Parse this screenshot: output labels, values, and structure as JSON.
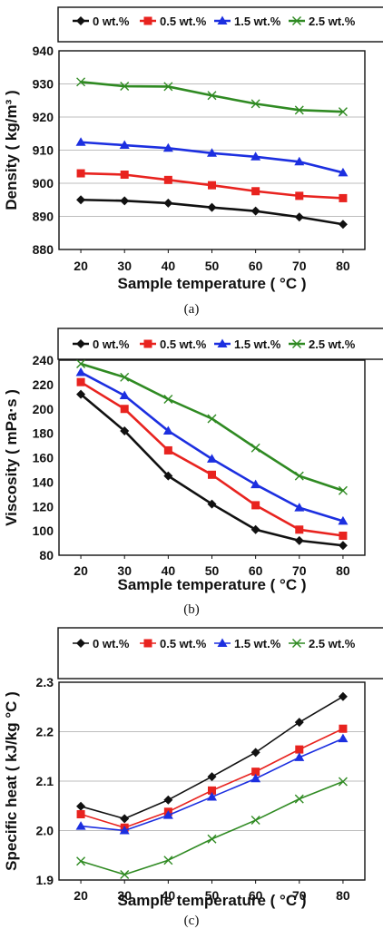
{
  "colors": {
    "0 wt.%": "#111111",
    "0.5 wt.%": "#e8231f",
    "1.5 wt.%": "#1c2fe0",
    "2.5 wt.%": "#2f8a22"
  },
  "chart_data": [
    {
      "type": "line",
      "panel": "a",
      "caption": "(a)",
      "x": [
        20,
        30,
        40,
        50,
        60,
        70,
        80
      ],
      "xticks": [
        "20",
        "30",
        "40",
        "50",
        "60",
        "70",
        "80"
      ],
      "yticks": [
        "880",
        "890",
        "900",
        "910",
        "920",
        "930",
        "940"
      ],
      "xlim": [
        15,
        85
      ],
      "ylim": [
        880,
        940
      ],
      "xlabel": "Sample temperature ( °C )",
      "ylabel": "Density ( kg/m³ )",
      "legend_position": "top",
      "grid": true,
      "series": [
        {
          "name": "0 wt.%",
          "marker": "diamond",
          "values": [
            895,
            894.7,
            894,
            892.7,
            891.6,
            889.8,
            887.6
          ]
        },
        {
          "name": "0.5 wt.%",
          "marker": "square",
          "values": [
            903,
            902.6,
            901,
            899.4,
            897.6,
            896.2,
            895.5
          ]
        },
        {
          "name": "1.5 wt.%",
          "marker": "triangle",
          "values": [
            912.4,
            911.5,
            910.6,
            909.1,
            908,
            906.5,
            903.2
          ]
        },
        {
          "name": "2.5 wt.%",
          "marker": "x",
          "values": [
            930.6,
            929.3,
            929.2,
            926.5,
            924,
            922.1,
            921.6
          ]
        }
      ]
    },
    {
      "type": "line",
      "panel": "b",
      "caption": "(b)",
      "x": [
        20,
        30,
        40,
        50,
        60,
        70,
        80
      ],
      "xticks": [
        "20",
        "30",
        "40",
        "50",
        "60",
        "70",
        "80"
      ],
      "yticks": [
        "80",
        "100",
        "120",
        "140",
        "160",
        "180",
        "200",
        "220",
        "240"
      ],
      "xlim": [
        15,
        85
      ],
      "ylim": [
        80,
        240
      ],
      "xlabel": "Sample temperature ( °C )",
      "ylabel": "Viscosity ( mPa·s )",
      "legend_position": "top",
      "grid": false,
      "series": [
        {
          "name": "0 wt.%",
          "marker": "diamond",
          "values": [
            212,
            182,
            145,
            122,
            101,
            92,
            88
          ]
        },
        {
          "name": "0.5 wt.%",
          "marker": "square",
          "values": [
            222,
            200,
            166,
            146,
            121,
            101,
            96
          ]
        },
        {
          "name": "1.5 wt.%",
          "marker": "triangle",
          "values": [
            230,
            211,
            182,
            159,
            138,
            119,
            108
          ]
        },
        {
          "name": "2.5 wt.%",
          "marker": "x",
          "values": [
            237,
            226,
            208,
            192,
            168,
            145,
            133
          ]
        }
      ]
    },
    {
      "type": "line",
      "panel": "c",
      "caption": "(c)",
      "x": [
        20,
        30,
        40,
        50,
        60,
        70,
        80
      ],
      "xticks": [
        "20",
        "30",
        "40",
        "50",
        "60",
        "70",
        "80"
      ],
      "yticks": [
        "1.9",
        "2.0",
        "2.1",
        "2.2",
        "2.3"
      ],
      "xlim": [
        15,
        85
      ],
      "ylim": [
        1.9,
        2.3
      ],
      "xlabel": "Sample temperature ( °C )",
      "ylabel": "Specific heat ( kJ/kg °C )",
      "legend_position": "top",
      "grid": true,
      "series": [
        {
          "name": "0 wt.%",
          "marker": "diamond",
          "values": [
            2.049,
            2.024,
            2.062,
            2.109,
            2.158,
            2.219,
            2.271
          ]
        },
        {
          "name": "0.5 wt.%",
          "marker": "square",
          "values": [
            2.033,
            2.006,
            2.038,
            2.081,
            2.119,
            2.164,
            2.206
          ]
        },
        {
          "name": "1.5 wt.%",
          "marker": "triangle",
          "values": [
            2.009,
            2.0,
            2.031,
            2.068,
            2.105,
            2.148,
            2.186
          ]
        },
        {
          "name": "2.5 wt.%",
          "marker": "x",
          "values": [
            1.938,
            1.911,
            1.94,
            1.983,
            2.021,
            2.064,
            2.099
          ]
        }
      ]
    }
  ]
}
